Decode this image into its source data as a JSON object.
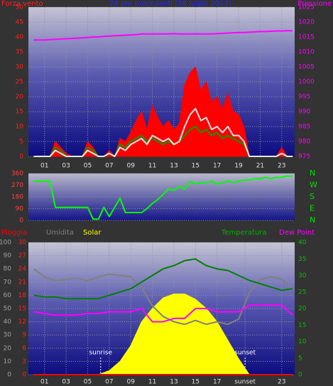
{
  "chart_data": [
    {
      "type": "line",
      "title": "24 ore precedenti (28 luglio 2013)",
      "ylabel": "Forza vento",
      "y2label": "Pressione",
      "x": [
        0,
        0.5,
        1,
        1.5,
        2,
        2.5,
        3,
        3.5,
        4,
        4.5,
        5,
        5.5,
        6,
        6.5,
        7,
        7.5,
        8,
        8.5,
        9,
        9.5,
        10,
        10.5,
        11,
        11.5,
        12,
        12.5,
        13,
        13.5,
        14,
        14.5,
        15,
        15.5,
        16,
        16.5,
        17,
        17.5,
        18,
        18.5,
        19,
        19.5,
        20,
        20.5,
        21,
        21.5,
        22,
        22.5,
        23,
        23.5,
        24
      ],
      "xlim": [
        -0.5,
        24.2
      ],
      "xticks": [
        {
          "value": 1,
          "label": "01"
        },
        {
          "value": 3,
          "label": "03"
        },
        {
          "value": 5,
          "label": "05"
        },
        {
          "value": 7,
          "label": "07"
        },
        {
          "value": 9,
          "label": "09"
        },
        11,
        13,
        15,
        17,
        19,
        21,
        23
      ],
      "ylim": [
        0,
        50
      ],
      "yticks": [
        0,
        5,
        10,
        15,
        20,
        25,
        30,
        35,
        40,
        45,
        50
      ],
      "ycolor": "#ff2020",
      "y2lim": [
        975,
        1025
      ],
      "y2ticks": [
        975,
        980,
        985,
        990,
        995,
        1000,
        1005,
        1010,
        1015,
        1020,
        1025
      ],
      "y2color": "#ff00ff",
      "grid": true,
      "series": [
        {
          "color": "#ff0000",
          "area": true,
          "values": [
            0,
            0,
            0,
            0,
            5,
            3,
            1,
            0,
            0,
            0,
            5,
            3,
            0,
            0,
            2,
            0,
            6,
            5,
            8,
            12,
            15,
            9,
            17,
            13,
            10,
            12,
            9,
            11,
            24,
            28,
            30,
            22,
            25,
            18,
            20,
            16,
            21,
            15,
            14,
            10,
            0,
            0,
            0,
            0,
            0,
            0,
            3,
            0,
            0
          ]
        },
        {
          "color": "#00a000",
          "values": [
            0,
            0,
            0,
            0,
            3,
            2,
            0,
            0,
            0,
            0,
            3,
            2,
            0,
            0,
            1,
            0,
            4,
            3,
            5,
            6,
            7,
            5,
            6,
            5,
            4,
            5,
            4,
            5,
            7,
            9,
            10,
            8,
            9,
            7,
            8,
            6,
            7,
            6,
            5,
            4,
            0,
            0,
            0,
            0,
            0,
            0,
            1,
            0,
            0
          ]
        },
        {
          "color": "#e8e8e8",
          "values": [
            0,
            0,
            0,
            0,
            2,
            1,
            0,
            0,
            0,
            0,
            2,
            1,
            0,
            0,
            1,
            0,
            3,
            2,
            4,
            5,
            6,
            4,
            7,
            6,
            5,
            6,
            4,
            5,
            10,
            14,
            16,
            12,
            13,
            9,
            10,
            8,
            10,
            7,
            7,
            5,
            0,
            0,
            0,
            0,
            0,
            0,
            1,
            0,
            0
          ]
        },
        {
          "color": "#ff00ff",
          "axis": "y2",
          "values": [
            1014,
            1014,
            1014,
            1014.1,
            1014.2,
            1014.3,
            1014.4,
            1014.5,
            1014.6,
            1014.7,
            1014.8,
            1015,
            1015,
            1015.2,
            1015.3,
            1015.4,
            1015.5,
            1015.6,
            1015.7,
            1015.8,
            1016,
            1016,
            1016,
            1016,
            1016,
            1016,
            1016.1,
            1016,
            1016,
            1016,
            1016,
            1016,
            1016,
            1016,
            1016.1,
            1016.2,
            1016.3,
            1016.4,
            1016.5,
            1016.5,
            1016.6,
            1016.7,
            1016.8,
            1016.8,
            1016.9,
            1017,
            1017,
            1017.1,
            1017.1
          ]
        }
      ]
    },
    {
      "type": "line",
      "x": [
        0,
        0.5,
        1,
        1.5,
        2,
        2.5,
        3,
        3.5,
        4,
        4.5,
        5,
        5.5,
        6,
        6.5,
        7,
        7.5,
        8,
        8.5,
        9,
        9.5,
        10,
        10.5,
        11,
        11.5,
        12,
        12.5,
        13,
        13.5,
        14,
        14.5,
        15,
        15.5,
        16,
        16.5,
        17,
        17.5,
        18,
        18.5,
        19,
        19.5,
        20,
        20.5,
        21,
        21.5,
        22,
        22.5,
        23,
        23.5,
        24
      ],
      "xlim": [
        -0.5,
        24.2
      ],
      "ylim": [
        0,
        360
      ],
      "yticks": [
        0,
        90,
        180,
        270,
        360
      ],
      "ycolor": "#ff4040",
      "y2lim": [
        0,
        360
      ],
      "y2ticks": [
        {
          "value": 360,
          "label": "N"
        },
        {
          "value": 270,
          "label": "W"
        },
        {
          "value": 180,
          "label": "S"
        },
        {
          "value": 90,
          "label": "E"
        },
        {
          "value": 0,
          "label": "N"
        }
      ],
      "y2color": "#00e000",
      "grid": true,
      "series": [
        {
          "color": "#00ff00",
          "values": [
            300,
            300,
            300,
            300,
            100,
            100,
            100,
            100,
            100,
            100,
            100,
            10,
            10,
            100,
            30,
            100,
            170,
            60,
            60,
            60,
            60,
            90,
            130,
            160,
            200,
            240,
            230,
            260,
            240,
            300,
            280,
            290,
            290,
            300,
            280,
            290,
            300,
            290,
            300,
            310,
            310,
            320,
            320,
            330,
            320,
            330,
            330,
            340,
            340
          ]
        }
      ]
    },
    {
      "type": "line",
      "x": [
        0,
        1,
        2,
        3,
        4,
        5,
        6,
        7,
        8,
        9,
        10,
        11,
        12,
        13,
        14,
        15,
        16,
        17,
        18,
        19,
        20,
        21,
        22,
        23,
        24
      ],
      "xlim": [
        -0.5,
        24.2
      ],
      "xticks": [
        {
          "value": 1,
          "label": "01"
        },
        {
          "value": 3,
          "label": "03"
        },
        {
          "value": 5,
          "label": "05"
        },
        {
          "value": 7,
          "label": "07"
        },
        {
          "value": 9,
          "label": "09"
        },
        11,
        13,
        15,
        17,
        {
          "value": 19.6,
          "label": "sunset"
        },
        23
      ],
      "ylim": [
        0,
        100
      ],
      "yticks": [
        0,
        10,
        20,
        30,
        40,
        50,
        60,
        70,
        80,
        90,
        100
      ],
      "ycolor": "#a0a0a0",
      "y3lim": [
        0,
        30
      ],
      "y3ticks": [
        0,
        3,
        6,
        9,
        12,
        15,
        18,
        21,
        24,
        27,
        30
      ],
      "y3color": "#ff2020",
      "y2lim": [
        0,
        40
      ],
      "y2ticks": [
        0,
        5,
        10,
        15,
        20,
        25,
        30,
        35,
        40
      ],
      "y2color": "#00c000",
      "grid": true,
      "annotations": [
        {
          "text": "sunrise",
          "x": 6.2
        },
        {
          "text": "sunset",
          "x": 19.6
        }
      ],
      "series": [
        {
          "name": "Pioggia",
          "color": "#ff0000",
          "axis": "y3",
          "values": [
            0,
            0,
            0,
            0,
            0,
            0,
            0,
            0,
            0,
            0,
            0,
            0,
            0,
            0,
            0,
            0,
            0,
            0,
            0,
            0,
            0,
            0,
            0,
            0,
            0
          ]
        },
        {
          "name": "Umidita",
          "color": "#808080",
          "values": [
            80,
            74,
            71,
            72,
            73,
            71,
            74,
            76,
            75,
            74,
            66,
            52,
            44,
            40,
            38,
            41,
            38,
            40,
            38,
            42,
            62,
            72,
            74,
            72,
            64
          ]
        },
        {
          "name": "Solar",
          "color": "#ffff00",
          "area": true,
          "values": [
            0,
            0,
            0,
            0,
            0,
            0,
            0,
            3,
            10,
            22,
            40,
            50,
            58,
            61,
            61,
            57,
            50,
            40,
            26,
            12,
            0,
            0,
            0,
            0,
            0
          ]
        },
        {
          "name": "Temperatura",
          "color": "#008000",
          "axis": "y2",
          "values": [
            24,
            23.5,
            23.5,
            23,
            23,
            23,
            23,
            24,
            25,
            26,
            28,
            30,
            32,
            33,
            34.5,
            35,
            33,
            32,
            31.5,
            30,
            28.5,
            27.5,
            26.5,
            25.5,
            26
          ]
        },
        {
          "name": "Dew Point",
          "color": "#ff00ff",
          "axis": "y2",
          "values": [
            19,
            18.5,
            18,
            18,
            18,
            18.5,
            18.5,
            19,
            19,
            19,
            20,
            16,
            16,
            17,
            17,
            20,
            20,
            19,
            19,
            19,
            21,
            21,
            21,
            21,
            18
          ]
        }
      ]
    }
  ]
}
